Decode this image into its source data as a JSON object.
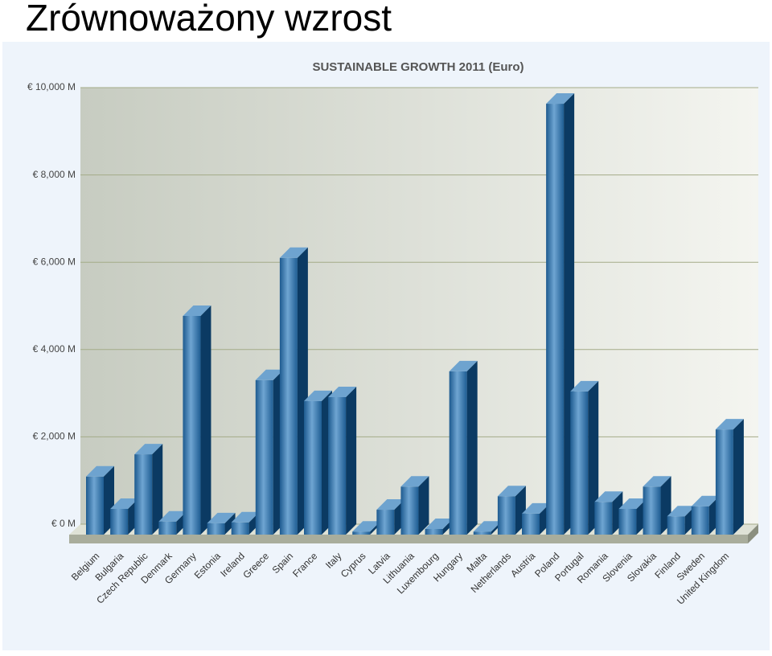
{
  "slide_title": "Zrównoważony wzrost",
  "chart_data": {
    "type": "bar3d",
    "title": "SUSTAINABLE GROWTH 2011 (Euro)",
    "categories": [
      "Belgium",
      "Bulgaria",
      "Czech Republic",
      "Denmark",
      "Germany",
      "Estonia",
      "Ireland",
      "Greece",
      "Spain",
      "France",
      "Italy",
      "Cyprus",
      "Latvia",
      "Lithuania",
      "Luxembourg",
      "Hungary",
      "Malta",
      "Netherlands",
      "Austria",
      "Poland",
      "Portugal",
      "Romania",
      "Slovenia",
      "Slovakia",
      "Finland",
      "Sweden",
      "United Kingdom"
    ],
    "values": [
      1330,
      590,
      1840,
      300,
      5010,
      260,
      280,
      3540,
      6340,
      3060,
      3150,
      70,
      570,
      1100,
      130,
      3740,
      70,
      880,
      480,
      9870,
      3280,
      750,
      590,
      1100,
      420,
      650,
      2410
    ],
    "color": "#2f74ad",
    "ylim": [
      0,
      10000
    ],
    "yticks": [
      {
        "value": 0,
        "label": "€ 0 M"
      },
      {
        "value": 2000,
        "label": "€ 2,000 M"
      },
      {
        "value": 4000,
        "label": "€ 4,000 M"
      },
      {
        "value": 6000,
        "label": "€ 6,000 M"
      },
      {
        "value": 8000,
        "label": "€ 8,000 M"
      },
      {
        "value": 10000,
        "label": "€ 10,000 M"
      }
    ],
    "grid": true
  }
}
